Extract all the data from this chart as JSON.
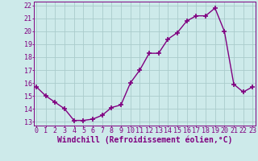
{
  "x": [
    0,
    1,
    2,
    3,
    4,
    5,
    6,
    7,
    8,
    9,
    10,
    11,
    12,
    13,
    14,
    15,
    16,
    17,
    18,
    19,
    20,
    21,
    22,
    23
  ],
  "y": [
    15.7,
    15.0,
    14.5,
    14.0,
    13.1,
    13.1,
    13.2,
    13.5,
    14.1,
    14.3,
    16.0,
    17.0,
    18.3,
    18.3,
    19.4,
    19.9,
    20.8,
    21.2,
    21.2,
    21.8,
    20.0,
    15.9,
    15.3,
    15.7
  ],
  "line_color": "#800080",
  "marker": "+",
  "marker_size": 4,
  "line_width": 1.0,
  "xlabel": "Windchill (Refroidissement éolien,°C)",
  "ylim_min": 13,
  "ylim_max": 22,
  "xlim_min": 0,
  "xlim_max": 23,
  "yticks": [
    13,
    14,
    15,
    16,
    17,
    18,
    19,
    20,
    21,
    22
  ],
  "xticks": [
    0,
    1,
    2,
    3,
    4,
    5,
    6,
    7,
    8,
    9,
    10,
    11,
    12,
    13,
    14,
    15,
    16,
    17,
    18,
    19,
    20,
    21,
    22,
    23
  ],
  "bg_color": "#cdeaea",
  "grid_color": "#aacccc",
  "tick_label_fontsize": 6,
  "xlabel_fontsize": 7
}
